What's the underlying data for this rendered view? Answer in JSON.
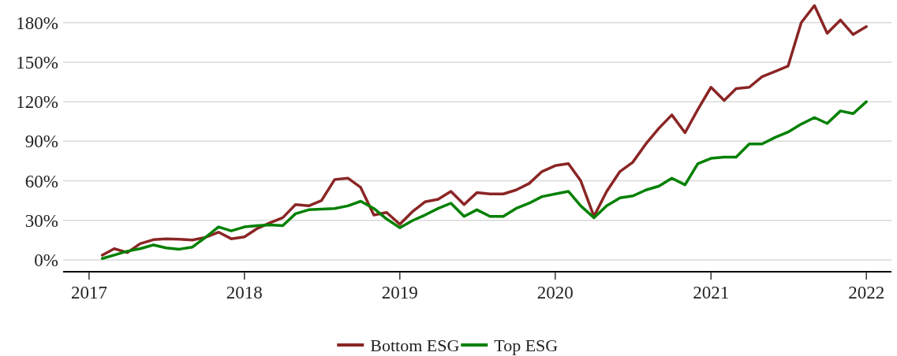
{
  "chart_data": {
    "type": "line",
    "x": [
      "2017-02",
      "2017-03",
      "2017-04",
      "2017-05",
      "2017-06",
      "2017-07",
      "2017-08",
      "2017-09",
      "2017-10",
      "2017-11",
      "2017-12",
      "2018-01",
      "2018-02",
      "2018-03",
      "2018-04",
      "2018-05",
      "2018-06",
      "2018-07",
      "2018-08",
      "2018-09",
      "2018-10",
      "2018-11",
      "2018-12",
      "2019-01",
      "2019-02",
      "2019-03",
      "2019-04",
      "2019-05",
      "2019-06",
      "2019-07",
      "2019-08",
      "2019-09",
      "2019-10",
      "2019-11",
      "2019-12",
      "2020-01",
      "2020-02",
      "2020-03",
      "2020-04",
      "2020-05",
      "2020-06",
      "2020-07",
      "2020-08",
      "2020-09",
      "2020-10",
      "2020-11",
      "2020-12",
      "2021-01",
      "2021-02",
      "2021-03",
      "2021-04",
      "2021-05",
      "2021-06",
      "2021-07",
      "2021-08",
      "2021-09",
      "2021-10",
      "2021-11",
      "2021-12",
      "2022-01"
    ],
    "series": [
      {
        "name": "Bottom ESG",
        "color": "#8b2525",
        "values": [
          3.6,
          8.5,
          5.6,
          12.3,
          15.3,
          15.9,
          15.7,
          15.1,
          17,
          21,
          16,
          17.5,
          24,
          28,
          32,
          42,
          41,
          45,
          61,
          62,
          55,
          34,
          36,
          27,
          37,
          44,
          46,
          52,
          42,
          51,
          50,
          50,
          53,
          58,
          67,
          71.5,
          73,
          60,
          33,
          52,
          67,
          74,
          88,
          100,
          110,
          96.5,
          114,
          131,
          121,
          130,
          131,
          139,
          143,
          147,
          180,
          193,
          172,
          182,
          171,
          177
        ]
      },
      {
        "name": "Top ESG",
        "color": "#008000",
        "values": [
          1,
          3.6,
          6.6,
          8.5,
          11.3,
          9.1,
          8.1,
          9.7,
          17,
          25,
          22,
          25,
          26,
          26.5,
          26,
          35,
          38,
          38.5,
          39,
          41,
          44.5,
          39,
          31,
          24.4,
          30,
          34,
          39,
          43,
          33,
          38,
          33,
          33,
          39,
          43,
          48,
          50,
          52,
          41,
          32,
          41,
          47,
          48.5,
          53,
          56,
          62,
          57,
          73,
          77,
          78,
          78,
          88,
          88,
          93,
          97,
          103,
          108,
          103.5,
          113,
          111,
          120
        ]
      }
    ],
    "xlim": [
      "2016-11",
      "2022-03"
    ],
    "xticks": [
      "2017",
      "2018",
      "2019",
      "2020",
      "2021",
      "2022"
    ],
    "ylim": [
      -9,
      196
    ],
    "yticks": [
      {
        "value": 0,
        "label": "0%"
      },
      {
        "value": 30,
        "label": "30%"
      },
      {
        "value": 60,
        "label": "60%"
      },
      {
        "value": 90,
        "label": "90%"
      },
      {
        "value": 120,
        "label": "120%"
      },
      {
        "value": 150,
        "label": "150%"
      },
      {
        "value": 180,
        "label": "180%"
      }
    ],
    "grid": "y",
    "legend": "bottom"
  }
}
